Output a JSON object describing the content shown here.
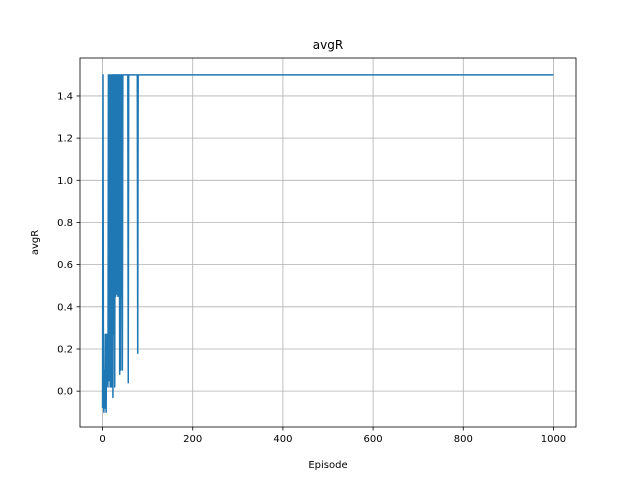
{
  "chart_data": {
    "type": "line",
    "title": "avgR",
    "xlabel": "Episode",
    "ylabel": "avgR",
    "xlim": [
      -50,
      1050
    ],
    "ylim": [
      -0.17,
      1.58
    ],
    "xticks": [
      0,
      200,
      400,
      600,
      800,
      1000
    ],
    "yticks": [
      0.0,
      0.2,
      0.4,
      0.6,
      0.8,
      1.0,
      1.2,
      1.4
    ],
    "grid": true,
    "legend": "none",
    "series": [
      {
        "color": "#1f77b4",
        "x": [
          0,
          1,
          2,
          3,
          4,
          5,
          6,
          7,
          8,
          9,
          10,
          11,
          12,
          13,
          14,
          15,
          16,
          17,
          18,
          19,
          20,
          21,
          22,
          23,
          24,
          25,
          26,
          27,
          28,
          29,
          30,
          31,
          32,
          33,
          34,
          35,
          36,
          37,
          38,
          39,
          40,
          41,
          42,
          43,
          44,
          45,
          46,
          47,
          48,
          49,
          50,
          51,
          52,
          53,
          54,
          55,
          56,
          57,
          58,
          59,
          60,
          61,
          62,
          63,
          64,
          65,
          66,
          67,
          68,
          69,
          70,
          71,
          72,
          73,
          74,
          75,
          76,
          77,
          78,
          79,
          80,
          81,
          82,
          1000
        ],
        "y": [
          -0.08,
          1.5,
          -0.05,
          -0.1,
          0.1,
          -0.08,
          0.27,
          0.0,
          -0.1,
          0.27,
          0.05,
          0.08,
          0.02,
          1.5,
          0.1,
          0.05,
          1.5,
          0.02,
          0.27,
          1.5,
          0.02,
          0.3,
          1.5,
          -0.03,
          1.5,
          0.27,
          1.5,
          0.02,
          1.5,
          0.45,
          1.5,
          1.5,
          0.46,
          1.5,
          0.45,
          1.5,
          0.45,
          1.5,
          0.08,
          1.5,
          0.1,
          1.5,
          0.45,
          1.5,
          0.1,
          1.5,
          1.5,
          1.5,
          1.5,
          1.5,
          1.5,
          1.5,
          1.5,
          1.5,
          1.5,
          1.5,
          1.5,
          0.04,
          1.5,
          1.5,
          1.5,
          1.5,
          1.5,
          1.5,
          1.5,
          1.5,
          1.5,
          1.5,
          1.5,
          1.5,
          1.5,
          1.5,
          1.5,
          1.5,
          1.5,
          1.5,
          1.5,
          1.5,
          0.18,
          1.5,
          1.5,
          1.5,
          1.5,
          1.5
        ]
      }
    ]
  }
}
